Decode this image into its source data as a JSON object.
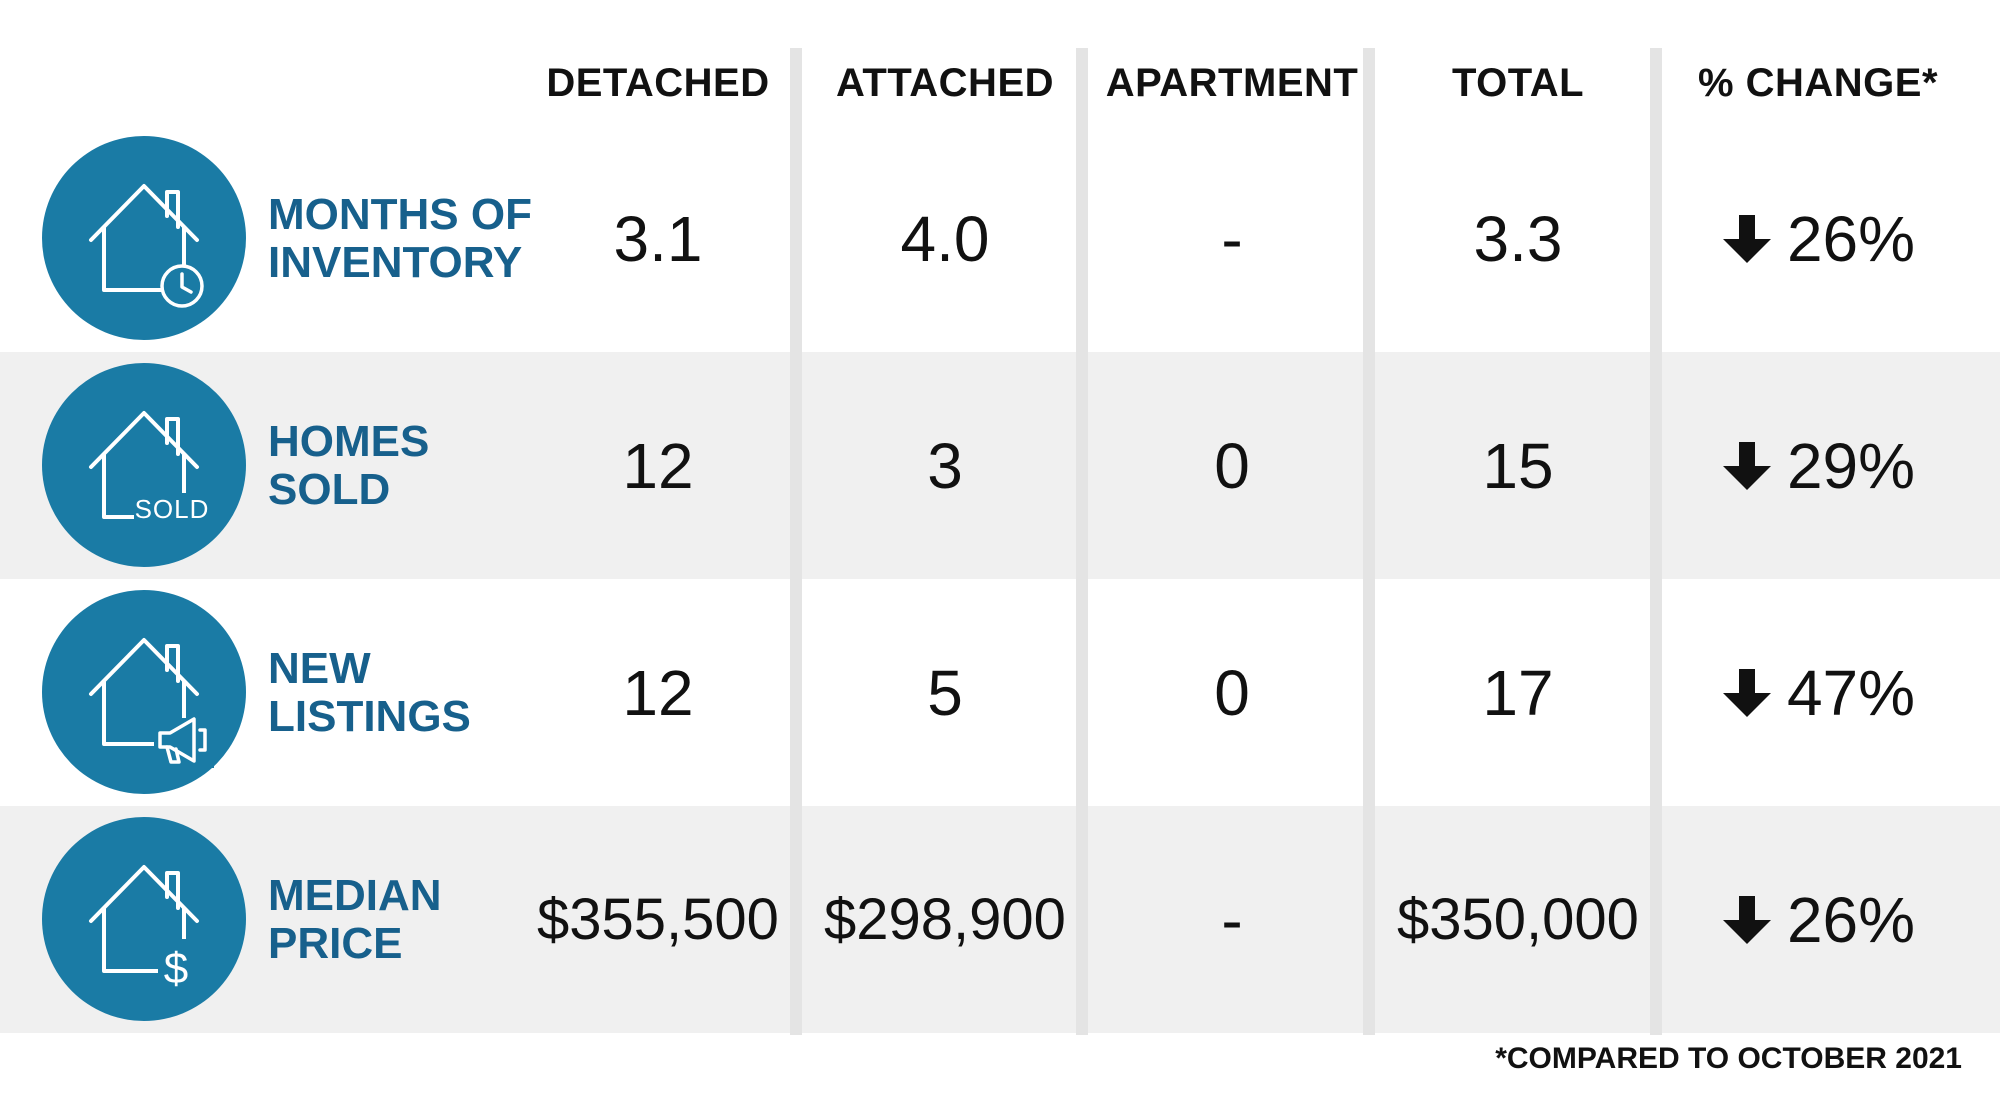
{
  "chart_data": {
    "type": "table",
    "columns": [
      "DETACHED",
      "ATTACHED",
      "APARTMENT",
      "TOTAL",
      "% CHANGE*"
    ],
    "rows": [
      {
        "label_lines": [
          "MONTHS OF",
          "INVENTORY"
        ],
        "icon": "house-clock-icon",
        "values": [
          "3.1",
          "4.0",
          "-",
          "3.3"
        ],
        "change": "26%",
        "change_direction": "down"
      },
      {
        "label_lines": [
          "HOMES",
          "SOLD"
        ],
        "icon": "house-sold-icon",
        "icon_text": "SOLD",
        "values": [
          "12",
          "3",
          "0",
          "15"
        ],
        "change": "29%",
        "change_direction": "down"
      },
      {
        "label_lines": [
          "NEW",
          "LISTINGS"
        ],
        "icon": "house-megaphone-icon",
        "values": [
          "12",
          "5",
          "0",
          "17"
        ],
        "change": "47%",
        "change_direction": "down"
      },
      {
        "label_lines": [
          "MEDIAN",
          "PRICE"
        ],
        "icon": "house-dollar-icon",
        "icon_text": "$",
        "values": [
          "$355,500",
          "$298,900",
          "-",
          "$350,000"
        ],
        "change": "26%",
        "change_direction": "down"
      }
    ],
    "footnote": "*COMPARED TO OCTOBER 2021"
  },
  "colors": {
    "icon_circle": "#1a7ba5",
    "row_label": "#17608c",
    "shaded_row": "#f0f0f0",
    "divider": "#e4e4e4",
    "text": "#111111"
  }
}
